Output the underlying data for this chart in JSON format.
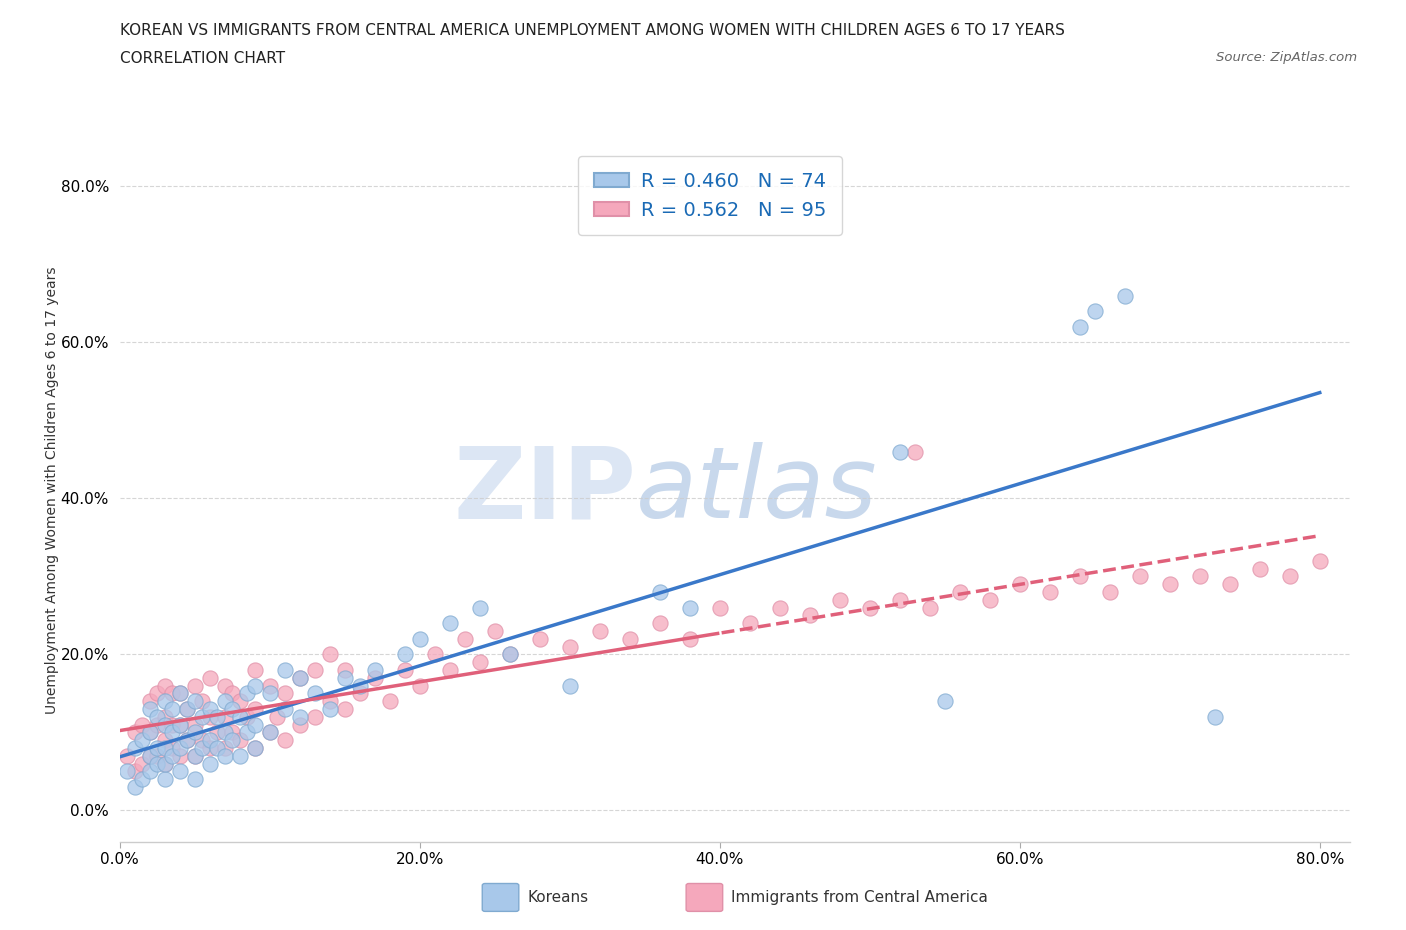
{
  "title_line1": "KOREAN VS IMMIGRANTS FROM CENTRAL AMERICA UNEMPLOYMENT AMONG WOMEN WITH CHILDREN AGES 6 TO 17 YEARS",
  "title_line2": "CORRELATION CHART",
  "source_text": "Source: ZipAtlas.com",
  "ylabel": "Unemployment Among Women with Children Ages 6 to 17 years",
  "xlim": [
    0.0,
    0.82
  ],
  "ylim": [
    -0.04,
    0.86
  ],
  "korean_R": 0.46,
  "korean_N": 74,
  "central_america_R": 0.562,
  "central_america_N": 95,
  "korean_color": "#a8c8ea",
  "central_america_color": "#f5a8bc",
  "trend_korean_color": "#3a78c9",
  "trend_central_solid_color": "#e0607a",
  "trend_central_dashed_color": "#e0607a",
  "watermark_color": "#dde5f0",
  "koreans_x": [
    0.005,
    0.01,
    0.01,
    0.015,
    0.015,
    0.02,
    0.02,
    0.02,
    0.02,
    0.025,
    0.025,
    0.025,
    0.03,
    0.03,
    0.03,
    0.03,
    0.03,
    0.035,
    0.035,
    0.035,
    0.04,
    0.04,
    0.04,
    0.04,
    0.045,
    0.045,
    0.05,
    0.05,
    0.05,
    0.05,
    0.055,
    0.055,
    0.06,
    0.06,
    0.06,
    0.065,
    0.065,
    0.07,
    0.07,
    0.07,
    0.075,
    0.075,
    0.08,
    0.08,
    0.085,
    0.085,
    0.09,
    0.09,
    0.09,
    0.1,
    0.1,
    0.11,
    0.11,
    0.12,
    0.12,
    0.13,
    0.14,
    0.15,
    0.16,
    0.17,
    0.19,
    0.2,
    0.22,
    0.24,
    0.26,
    0.3,
    0.36,
    0.38,
    0.52,
    0.55,
    0.64,
    0.65,
    0.67,
    0.73
  ],
  "koreans_y": [
    0.05,
    0.03,
    0.08,
    0.04,
    0.09,
    0.05,
    0.07,
    0.1,
    0.13,
    0.06,
    0.08,
    0.12,
    0.04,
    0.06,
    0.08,
    0.11,
    0.14,
    0.07,
    0.1,
    0.13,
    0.05,
    0.08,
    0.11,
    0.15,
    0.09,
    0.13,
    0.04,
    0.07,
    0.1,
    0.14,
    0.08,
    0.12,
    0.06,
    0.09,
    0.13,
    0.08,
    0.12,
    0.07,
    0.1,
    0.14,
    0.09,
    0.13,
    0.07,
    0.12,
    0.1,
    0.15,
    0.08,
    0.11,
    0.16,
    0.1,
    0.15,
    0.13,
    0.18,
    0.12,
    0.17,
    0.15,
    0.13,
    0.17,
    0.16,
    0.18,
    0.2,
    0.22,
    0.24,
    0.26,
    0.2,
    0.16,
    0.28,
    0.26,
    0.46,
    0.14,
    0.62,
    0.64,
    0.66,
    0.12
  ],
  "central_x": [
    0.005,
    0.01,
    0.01,
    0.015,
    0.015,
    0.02,
    0.02,
    0.02,
    0.025,
    0.025,
    0.025,
    0.03,
    0.03,
    0.03,
    0.03,
    0.035,
    0.035,
    0.035,
    0.04,
    0.04,
    0.04,
    0.045,
    0.045,
    0.05,
    0.05,
    0.05,
    0.055,
    0.055,
    0.06,
    0.06,
    0.06,
    0.065,
    0.07,
    0.07,
    0.07,
    0.075,
    0.075,
    0.08,
    0.08,
    0.085,
    0.09,
    0.09,
    0.09,
    0.1,
    0.1,
    0.105,
    0.11,
    0.11,
    0.12,
    0.12,
    0.13,
    0.13,
    0.14,
    0.14,
    0.15,
    0.15,
    0.16,
    0.17,
    0.18,
    0.19,
    0.2,
    0.21,
    0.22,
    0.23,
    0.24,
    0.25,
    0.26,
    0.28,
    0.3,
    0.32,
    0.34,
    0.36,
    0.38,
    0.4,
    0.42,
    0.44,
    0.46,
    0.48,
    0.5,
    0.52,
    0.54,
    0.56,
    0.58,
    0.6,
    0.62,
    0.64,
    0.66,
    0.68,
    0.7,
    0.72,
    0.74,
    0.76,
    0.78,
    0.8,
    0.53
  ],
  "central_y": [
    0.07,
    0.05,
    0.1,
    0.06,
    0.11,
    0.07,
    0.1,
    0.14,
    0.07,
    0.11,
    0.15,
    0.06,
    0.09,
    0.12,
    0.16,
    0.08,
    0.11,
    0.15,
    0.07,
    0.11,
    0.15,
    0.09,
    0.13,
    0.07,
    0.11,
    0.16,
    0.09,
    0.14,
    0.08,
    0.12,
    0.17,
    0.1,
    0.08,
    0.12,
    0.16,
    0.1,
    0.15,
    0.09,
    0.14,
    0.12,
    0.08,
    0.13,
    0.18,
    0.1,
    0.16,
    0.12,
    0.09,
    0.15,
    0.11,
    0.17,
    0.12,
    0.18,
    0.14,
    0.2,
    0.13,
    0.18,
    0.15,
    0.17,
    0.14,
    0.18,
    0.16,
    0.2,
    0.18,
    0.22,
    0.19,
    0.23,
    0.2,
    0.22,
    0.21,
    0.23,
    0.22,
    0.24,
    0.22,
    0.26,
    0.24,
    0.26,
    0.25,
    0.27,
    0.26,
    0.27,
    0.26,
    0.28,
    0.27,
    0.29,
    0.28,
    0.3,
    0.28,
    0.3,
    0.29,
    0.3,
    0.29,
    0.31,
    0.3,
    0.32,
    0.46
  ]
}
